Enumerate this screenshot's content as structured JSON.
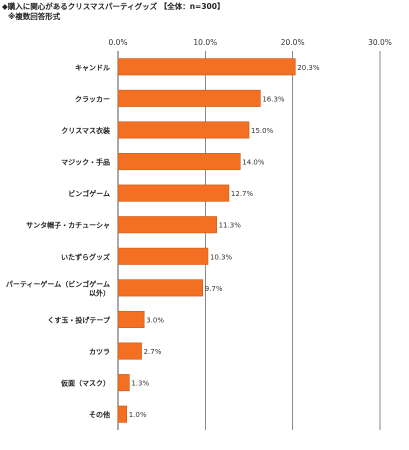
{
  "title": "◆購入に関心があるクリスマスパーティグッズ 【全体：n=300】",
  "note": "※複数回答形式",
  "chart_data": {
    "type": "bar",
    "orientation": "horizontal",
    "categories": [
      "キャンドル",
      "クラッカー",
      "クリスマス衣装",
      "マジック・手品",
      "ビンゴゲーム",
      "サンタ帽子・カチューシャ",
      "いたずらグッズ",
      "パーティーゲーム（ビンゴゲーム以外）",
      "くす玉・投げテープ",
      "カツラ",
      "仮面（マスク）",
      "その他"
    ],
    "category_lines": [
      [
        "キャンドル"
      ],
      [
        "クラッカー"
      ],
      [
        "クリスマス衣装"
      ],
      [
        "マジック・手品"
      ],
      [
        "ビンゴゲーム"
      ],
      [
        "サンタ帽子・カチューシャ"
      ],
      [
        "いたずらグッズ"
      ],
      [
        "パーティーゲーム（ビンゴゲーム",
        "以外）"
      ],
      [
        "くす玉・投げテープ"
      ],
      [
        "カツラ"
      ],
      [
        "仮面（マスク）"
      ],
      [
        "その他"
      ]
    ],
    "values": [
      20.3,
      16.3,
      15.0,
      14.0,
      12.7,
      11.3,
      10.3,
      9.7,
      3.0,
      2.7,
      1.3,
      1.0
    ],
    "value_labels": [
      "20.3%",
      "16.3%",
      "15.0%",
      "14.0%",
      "12.7%",
      "11.3%",
      "10.3%",
      "9.7%",
      "3.0%",
      "2.7%",
      "1.3%",
      "1.0%"
    ],
    "xlim": [
      0,
      30
    ],
    "xticks": [
      "0.0%",
      "10.0%",
      "20.0%",
      "30.0%"
    ],
    "grid": true,
    "bar_color": "#f36f21",
    "bar_border_color": "#c85a1a",
    "grid_color": "#555555"
  }
}
